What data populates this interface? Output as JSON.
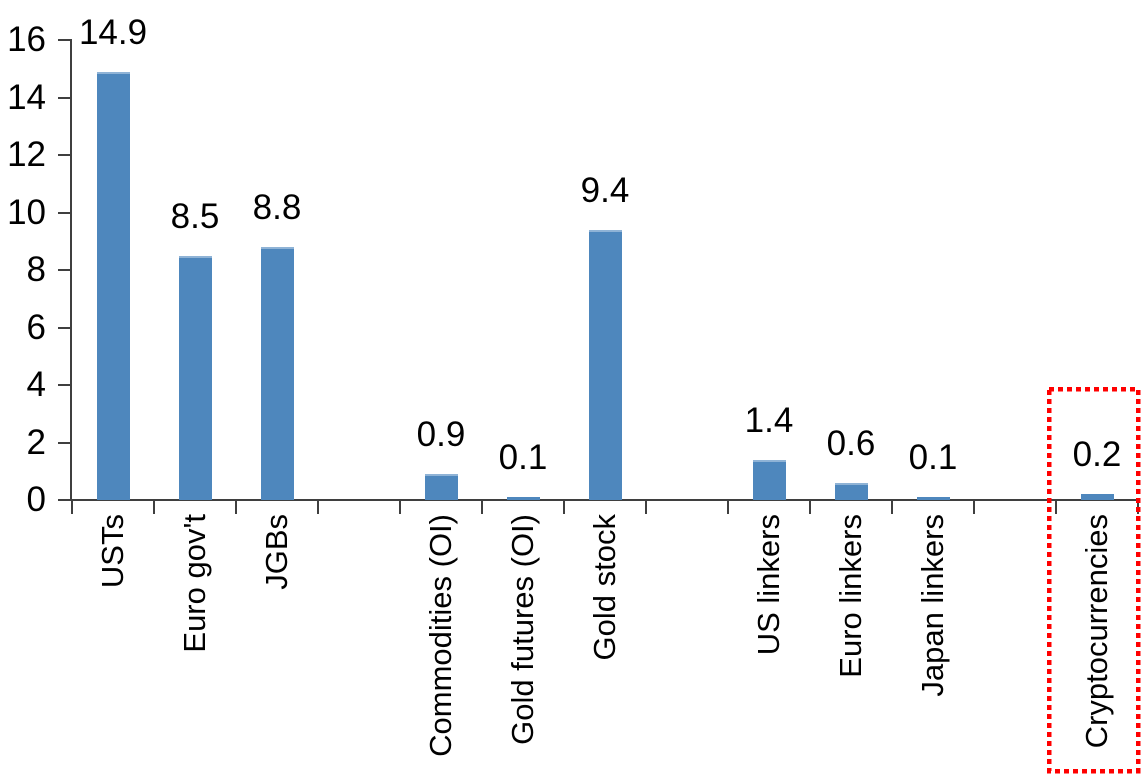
{
  "chart_data": {
    "type": "bar",
    "title": "",
    "xlabel": "",
    "ylabel": "",
    "categories": [
      "USTs",
      "Euro gov't",
      "JGBs",
      "",
      "Commodities (OI)",
      "Gold futures (OI)",
      "Gold stock",
      "",
      "US linkers",
      "Euro linkers",
      "Japan linkers",
      "",
      "Cryptocurrencies"
    ],
    "values": [
      14.9,
      8.5,
      8.8,
      null,
      0.9,
      0.1,
      9.4,
      null,
      1.4,
      0.6,
      0.1,
      null,
      0.2
    ],
    "data_labels": [
      "14.9",
      "8.5",
      "8.8",
      "",
      "0.9",
      "0.1",
      "9.4",
      "",
      "1.4",
      "0.6",
      "0.1",
      "",
      "0.2"
    ],
    "ylim": [
      0,
      16
    ],
    "y_ticks": [
      0,
      2,
      4,
      6,
      8,
      10,
      12,
      14,
      16
    ],
    "grid": false,
    "legend": false,
    "bar_color": "#4E87BD",
    "bar_top_edge_color": "#8FB3D6",
    "axis_color": "#3F3F3F",
    "text_color": "#000000",
    "highlight": {
      "category": "Cryptocurrencies",
      "box_color": "#FF0000",
      "box_style": "dotted"
    }
  }
}
